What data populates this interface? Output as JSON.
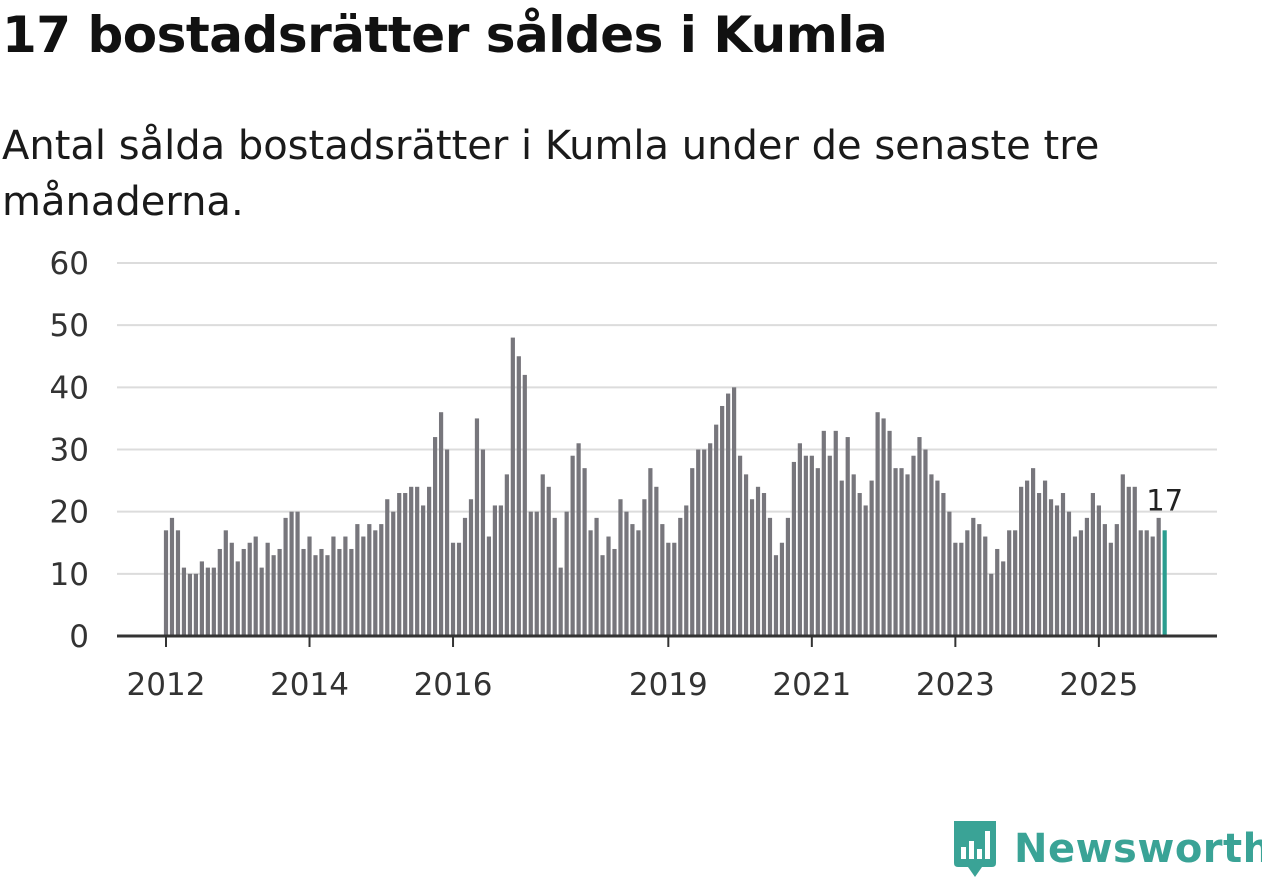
{
  "title": "17 bostadsrätter såldes i Kumla",
  "subtitle": "Antal sålda bostadsrätter i Kumla under de senaste tre månaderna.",
  "brand": {
    "name": "Newsworthy",
    "icon": "newsworthy-logo-icon"
  },
  "colors": {
    "bar": "#77767c",
    "highlight": "#2a9d8f",
    "grid": "#dcdcdc",
    "axis": "#333333",
    "brand": "#3aa396"
  },
  "chart_data": {
    "type": "bar",
    "title": "17 bostadsrätter såldes i Kumla",
    "xlabel": "",
    "ylabel": "",
    "ylim": [
      0,
      60
    ],
    "yticks": [
      0,
      10,
      20,
      30,
      40,
      50,
      60
    ],
    "xtick_labels": [
      {
        "label": "2012",
        "index": 0
      },
      {
        "label": "2014",
        "index": 24
      },
      {
        "label": "2016",
        "index": 48
      },
      {
        "label": "2019",
        "index": 84
      },
      {
        "label": "2021",
        "index": 108
      },
      {
        "label": "2023",
        "index": 132
      },
      {
        "label": "2025",
        "index": 156
      }
    ],
    "start": "2012-01",
    "frequency": "monthly",
    "values": [
      17,
      19,
      17,
      11,
      10,
      10,
      12,
      11,
      11,
      14,
      17,
      15,
      12,
      14,
      15,
      16,
      11,
      15,
      13,
      14,
      19,
      20,
      20,
      14,
      16,
      13,
      14,
      13,
      16,
      14,
      16,
      14,
      18,
      16,
      18,
      17,
      18,
      22,
      20,
      23,
      23,
      24,
      24,
      21,
      24,
      32,
      36,
      30,
      15,
      15,
      19,
      22,
      35,
      30,
      16,
      21,
      21,
      26,
      48,
      45,
      42,
      20,
      20,
      26,
      24,
      19,
      11,
      20,
      29,
      31,
      27,
      17,
      19,
      13,
      16,
      14,
      22,
      20,
      18,
      17,
      22,
      27,
      24,
      18,
      15,
      15,
      19,
      21,
      27,
      30,
      30,
      31,
      34,
      37,
      39,
      40,
      29,
      26,
      22,
      24,
      23,
      19,
      13,
      15,
      19,
      28,
      31,
      29,
      29,
      27,
      33,
      29,
      33,
      25,
      32,
      26,
      23,
      21,
      25,
      36,
      35,
      33,
      27,
      27,
      26,
      29,
      32,
      30,
      26,
      25,
      23,
      20,
      15,
      15,
      17,
      19,
      18,
      16,
      10,
      14,
      12,
      17,
      17,
      24,
      25,
      27,
      23,
      25,
      22,
      21,
      23,
      20,
      16,
      17,
      19,
      23,
      21,
      18,
      15,
      18,
      26,
      24,
      24,
      17,
      17,
      16,
      19,
      17
    ],
    "highlight_last": true,
    "annotations": [
      {
        "index": 167,
        "text": "17"
      }
    ]
  }
}
